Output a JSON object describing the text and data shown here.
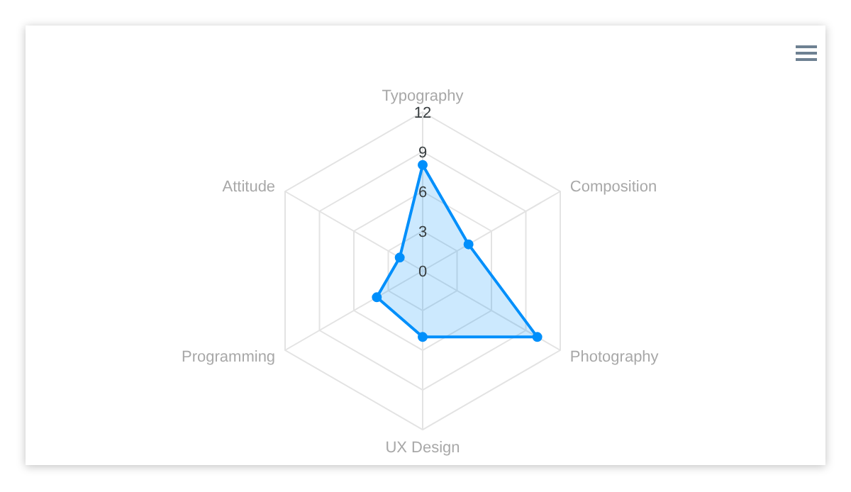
{
  "chart_data": {
    "type": "radar",
    "categories": [
      "Typography",
      "Composition",
      "Photography",
      "UX Design",
      "Programming",
      "Attitude"
    ],
    "series": [
      {
        "color": "#008ffb",
        "values": [
          8,
          4,
          10,
          5,
          4,
          2
        ]
      }
    ],
    "ylim": [
      0,
      12
    ],
    "yticks": [
      0,
      3,
      6,
      9,
      12
    ],
    "grid": true,
    "marker": "circle",
    "line_style": "solid"
  }
}
